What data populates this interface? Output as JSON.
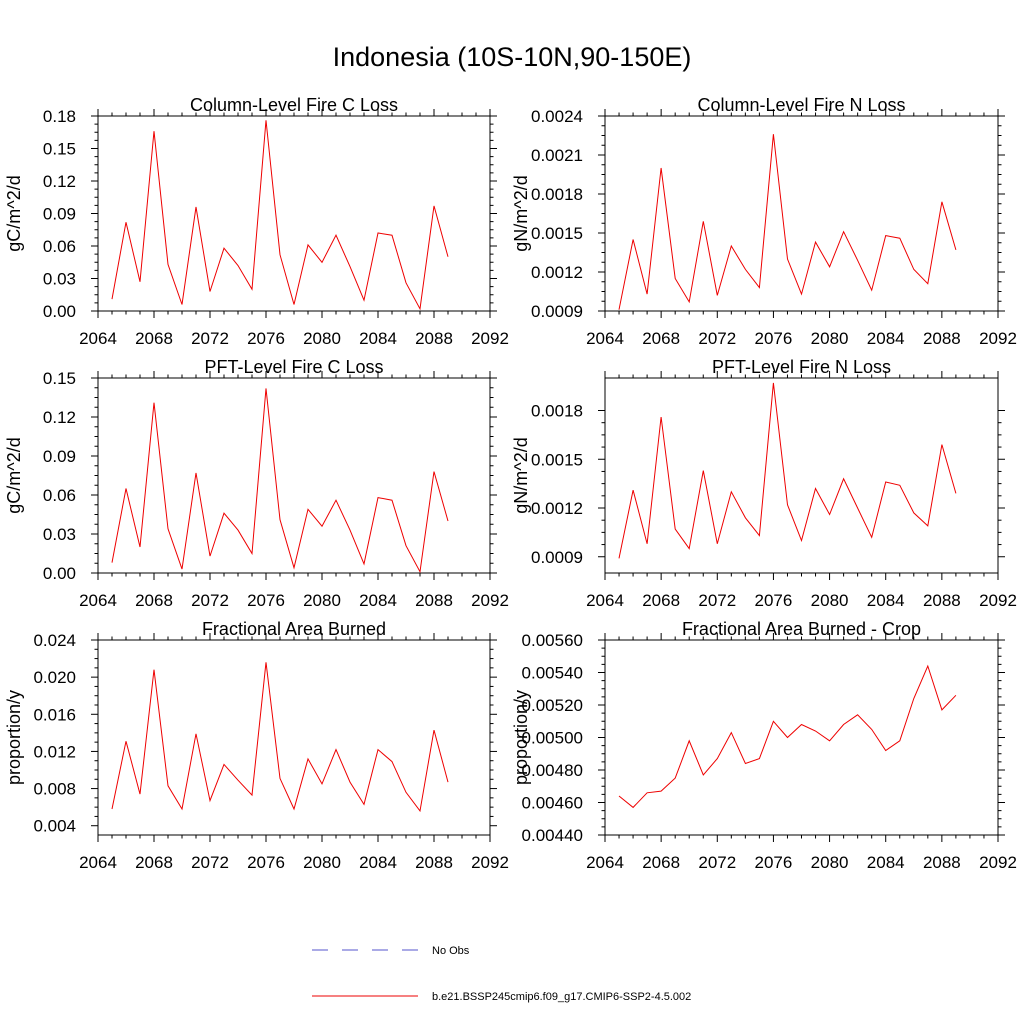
{
  "title": "Indonesia (10S-10N,90-150E)",
  "legend": [
    {
      "label": "No Obs",
      "color": "#5555cc",
      "style": "dashed"
    },
    {
      "label": "b.e21.BSSP245cmip6.f09_g17.CMIP6-SSP2-4.5.002",
      "color": "#ee0000",
      "style": "solid"
    }
  ],
  "chart_data": [
    {
      "type": "line",
      "title": "Column-Level Fire C Loss",
      "ylabel": "gC/m^2/d",
      "xlim": [
        2064,
        2092
      ],
      "ylim": [
        0,
        0.18
      ],
      "xticks": [
        2064,
        2068,
        2072,
        2076,
        2080,
        2084,
        2088,
        2092
      ],
      "yticks": [
        0,
        0.03,
        0.06,
        0.09,
        0.12,
        0.15,
        0.18
      ],
      "yticklabels": [
        "0.00",
        "0.03",
        "0.06",
        "0.09",
        "0.12",
        "0.15",
        "0.18"
      ],
      "x": [
        2065,
        2066,
        2067,
        2068,
        2069,
        2070,
        2071,
        2072,
        2073,
        2074,
        2075,
        2076,
        2077,
        2078,
        2079,
        2080,
        2081,
        2082,
        2083,
        2084,
        2085,
        2086,
        2087,
        2088,
        2089
      ],
      "series": [
        {
          "color": "#ee0000",
          "values": [
            0.011,
            0.082,
            0.027,
            0.166,
            0.043,
            0.006,
            0.096,
            0.018,
            0.058,
            0.042,
            0.02,
            0.176,
            0.052,
            0.006,
            0.061,
            0.045,
            0.07,
            0.041,
            0.01,
            0.072,
            0.07,
            0.026,
            0.002,
            0.097,
            0.05
          ]
        }
      ]
    },
    {
      "type": "line",
      "title": "Column-Level Fire N Loss",
      "ylabel": "gN/m^2/d",
      "xlim": [
        2064,
        2092
      ],
      "ylim": [
        0.0009,
        0.0024
      ],
      "xticks": [
        2064,
        2068,
        2072,
        2076,
        2080,
        2084,
        2088,
        2092
      ],
      "yticks": [
        0.0009,
        0.0012,
        0.0015,
        0.0018,
        0.0021,
        0.0024
      ],
      "yticklabels": [
        "0.0009",
        "0.0012",
        "0.0015",
        "0.0018",
        "0.0021",
        "0.0024"
      ],
      "x": [
        2065,
        2066,
        2067,
        2068,
        2069,
        2070,
        2071,
        2072,
        2073,
        2074,
        2075,
        2076,
        2077,
        2078,
        2079,
        2080,
        2081,
        2082,
        2083,
        2084,
        2085,
        2086,
        2087,
        2088,
        2089
      ],
      "series": [
        {
          "color": "#ee0000",
          "values": [
            0.00091,
            0.00145,
            0.00103,
            0.002,
            0.00115,
            0.00097,
            0.00159,
            0.00102,
            0.0014,
            0.00122,
            0.00108,
            0.00226,
            0.0013,
            0.00103,
            0.00143,
            0.00124,
            0.00151,
            0.00129,
            0.00106,
            0.00148,
            0.00146,
            0.00122,
            0.00111,
            0.00174,
            0.00137
          ]
        }
      ]
    },
    {
      "type": "line",
      "title": "PFT-Level Fire C Loss",
      "ylabel": "gC/m^2/d",
      "xlim": [
        2064,
        2092
      ],
      "ylim": [
        0,
        0.15
      ],
      "xticks": [
        2064,
        2068,
        2072,
        2076,
        2080,
        2084,
        2088,
        2092
      ],
      "yticks": [
        0,
        0.03,
        0.06,
        0.09,
        0.12,
        0.15
      ],
      "yticklabels": [
        "0.00",
        "0.03",
        "0.06",
        "0.09",
        "0.12",
        "0.15"
      ],
      "x": [
        2065,
        2066,
        2067,
        2068,
        2069,
        2070,
        2071,
        2072,
        2073,
        2074,
        2075,
        2076,
        2077,
        2078,
        2079,
        2080,
        2081,
        2082,
        2083,
        2084,
        2085,
        2086,
        2087,
        2088,
        2089
      ],
      "series": [
        {
          "color": "#ee0000",
          "values": [
            0.008,
            0.065,
            0.02,
            0.131,
            0.034,
            0.003,
            0.077,
            0.013,
            0.046,
            0.033,
            0.015,
            0.142,
            0.041,
            0.004,
            0.049,
            0.036,
            0.056,
            0.033,
            0.007,
            0.058,
            0.056,
            0.021,
            0.001,
            0.078,
            0.04
          ]
        }
      ]
    },
    {
      "type": "line",
      "title": "PFT-Level Fire N Loss",
      "ylabel": "gN/m^2/d",
      "xlim": [
        2064,
        2092
      ],
      "ylim": [
        0.0008,
        0.002
      ],
      "xticks": [
        2064,
        2068,
        2072,
        2076,
        2080,
        2084,
        2088,
        2092
      ],
      "yticks": [
        0.0009,
        0.0012,
        0.0015,
        0.0018
      ],
      "yticklabels": [
        "0.0009",
        "0.0012",
        "0.0015",
        "0.0018"
      ],
      "x": [
        2065,
        2066,
        2067,
        2068,
        2069,
        2070,
        2071,
        2072,
        2073,
        2074,
        2075,
        2076,
        2077,
        2078,
        2079,
        2080,
        2081,
        2082,
        2083,
        2084,
        2085,
        2086,
        2087,
        2088,
        2089
      ],
      "series": [
        {
          "color": "#ee0000",
          "values": [
            0.00089,
            0.00131,
            0.00098,
            0.00176,
            0.00107,
            0.00095,
            0.00143,
            0.00098,
            0.0013,
            0.00114,
            0.00103,
            0.00197,
            0.00122,
            0.001,
            0.00132,
            0.00116,
            0.00138,
            0.0012,
            0.00102,
            0.00136,
            0.00134,
            0.00117,
            0.00109,
            0.00159,
            0.00129
          ]
        }
      ]
    },
    {
      "type": "line",
      "title": "Fractional Area Burned",
      "ylabel": "proportion/y",
      "xlim": [
        2064,
        2092
      ],
      "ylim": [
        0.003,
        0.024
      ],
      "xticks": [
        2064,
        2068,
        2072,
        2076,
        2080,
        2084,
        2088,
        2092
      ],
      "yticks": [
        0.004,
        0.008,
        0.012,
        0.016,
        0.02,
        0.024
      ],
      "yticklabels": [
        "0.004",
        "0.008",
        "0.012",
        "0.016",
        "0.020",
        "0.024"
      ],
      "x": [
        2065,
        2066,
        2067,
        2068,
        2069,
        2070,
        2071,
        2072,
        2073,
        2074,
        2075,
        2076,
        2077,
        2078,
        2079,
        2080,
        2081,
        2082,
        2083,
        2084,
        2085,
        2086,
        2087,
        2088,
        2089
      ],
      "series": [
        {
          "color": "#ee0000",
          "values": [
            0.0058,
            0.0131,
            0.0074,
            0.0208,
            0.0083,
            0.0058,
            0.0139,
            0.0067,
            0.0106,
            0.0089,
            0.0073,
            0.0216,
            0.0091,
            0.0058,
            0.0112,
            0.0085,
            0.0122,
            0.0087,
            0.0063,
            0.0122,
            0.0109,
            0.0076,
            0.0056,
            0.0143,
            0.0087
          ]
        }
      ]
    },
    {
      "type": "line",
      "title": "Fractional Area Burned - Crop",
      "ylabel": "proportion/y",
      "xlim": [
        2064,
        2092
      ],
      "ylim": [
        0.0044,
        0.0056
      ],
      "xticks": [
        2064,
        2068,
        2072,
        2076,
        2080,
        2084,
        2088,
        2092
      ],
      "yticks": [
        0.0044,
        0.0046,
        0.0048,
        0.005,
        0.0052,
        0.0054,
        0.0056
      ],
      "yticklabels": [
        "0.00440",
        "0.00460",
        "0.00480",
        "0.00500",
        "0.00520",
        "0.00540",
        "0.00560"
      ],
      "x": [
        2065,
        2066,
        2067,
        2068,
        2069,
        2070,
        2071,
        2072,
        2073,
        2074,
        2075,
        2076,
        2077,
        2078,
        2079,
        2080,
        2081,
        2082,
        2083,
        2084,
        2085,
        2086,
        2087,
        2088,
        2089
      ],
      "series": [
        {
          "color": "#ee0000",
          "values": [
            0.00464,
            0.00457,
            0.00466,
            0.00467,
            0.00475,
            0.00498,
            0.00477,
            0.00487,
            0.00503,
            0.00484,
            0.00487,
            0.0051,
            0.005,
            0.00508,
            0.00504,
            0.00498,
            0.00508,
            0.00514,
            0.00505,
            0.00492,
            0.00498,
            0.00524,
            0.00544,
            0.00517,
            0.00526
          ]
        }
      ]
    }
  ]
}
